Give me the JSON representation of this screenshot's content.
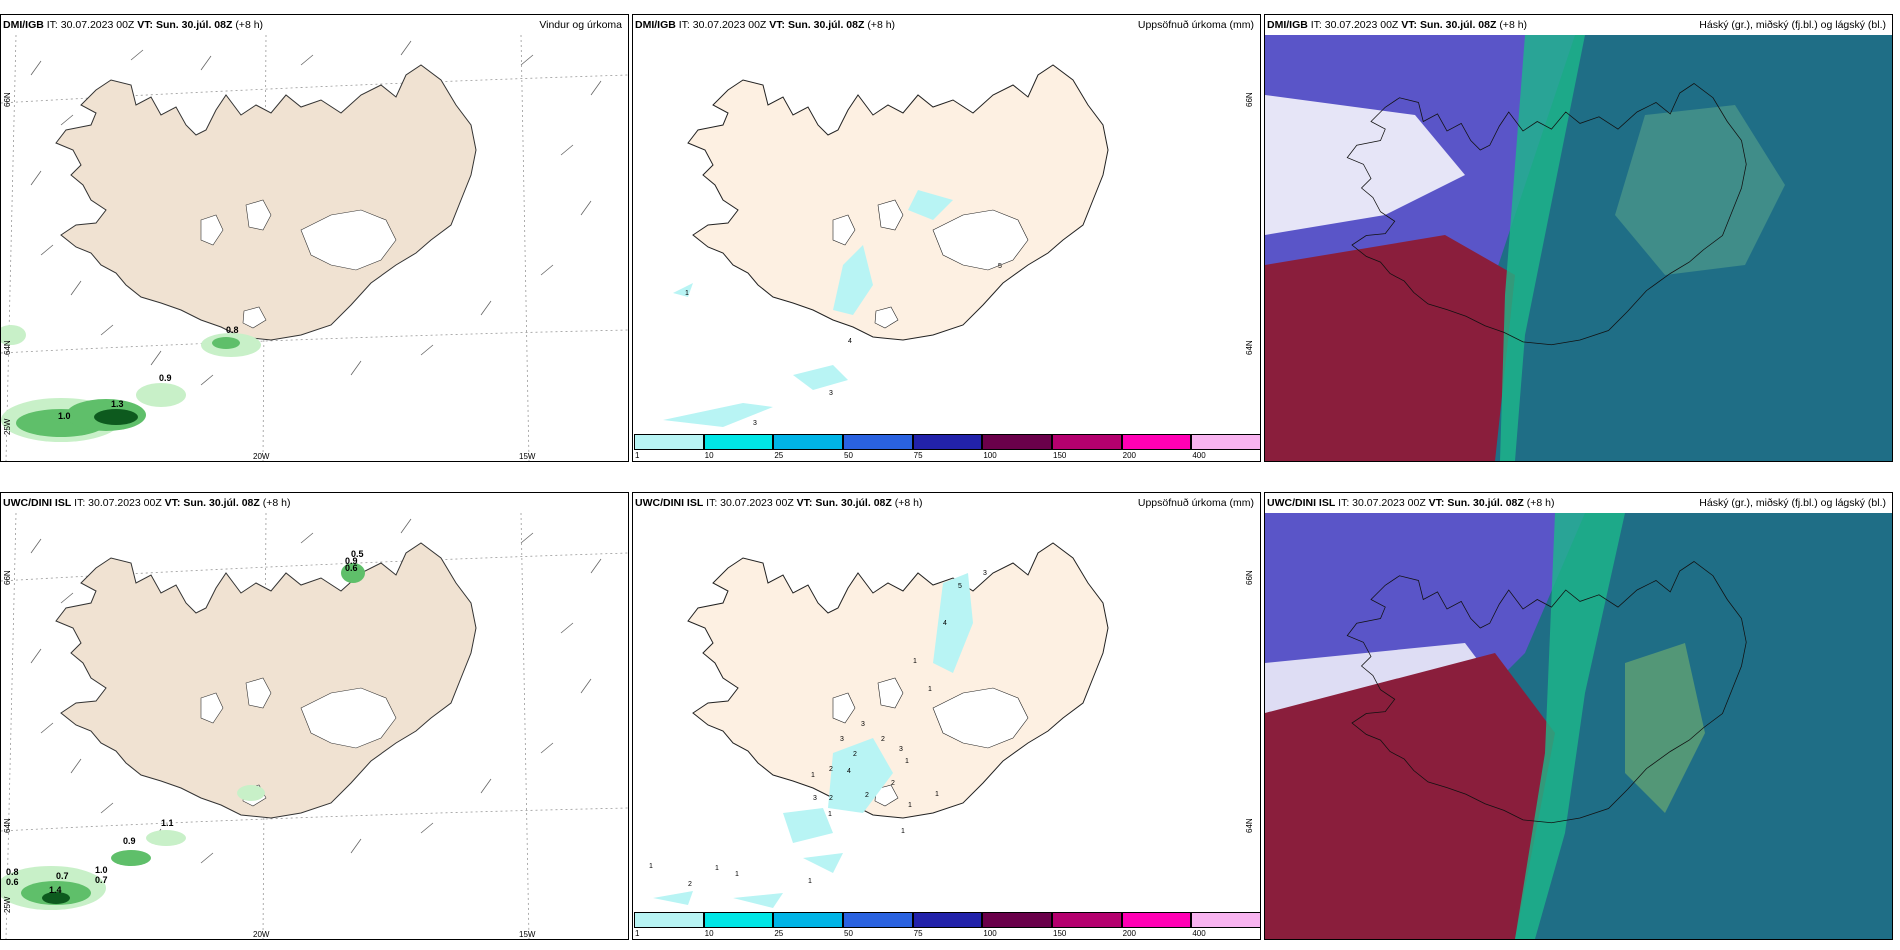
{
  "panels": [
    {
      "id": "p1",
      "model": "DMI/IGB",
      "it": "IT: 30.07.2023 00Z",
      "vt_label": "VT:",
      "vt": "Sun. 30.júl. 08Z",
      "lead": "(+8 h)",
      "product": "Vindur og úrkoma"
    },
    {
      "id": "p2",
      "model": "DMI/IGB",
      "it": "IT: 30.07.2023 00Z",
      "vt_label": "VT:",
      "vt": "Sun. 30.júl. 08Z",
      "lead": "(+8 h)",
      "product": "Uppsöfnuð úrkoma (mm)"
    },
    {
      "id": "p3",
      "model": "DMI/IGB",
      "it": "IT: 30.07.2023 00Z",
      "vt_label": "VT:",
      "vt": "Sun. 30.júl. 08Z",
      "lead": "(+8 h)",
      "product": "Háský (gr.), miðský (fj.bl.) og lágský (bl.)"
    },
    {
      "id": "p4",
      "model": "UWC/DINI ISL",
      "it": "IT: 30.07.2023 00Z",
      "vt_label": "VT:",
      "vt": "Sun. 30.júl. 08Z",
      "lead": "(+8 h)",
      "product": ""
    },
    {
      "id": "p5",
      "model": "UWC/DINI ISL",
      "it": "IT: 30.07.2023 00Z",
      "vt_label": "VT:",
      "vt": "Sun. 30.júl. 08Z",
      "lead": "(+8 h)",
      "product": "Uppsöfnuð úrkoma (mm)"
    },
    {
      "id": "p6",
      "model": "UWC/DINI ISL",
      "it": "IT: 30.07.2023 00Z",
      "vt_label": "VT:",
      "vt": "Sun. 30.júl. 08Z",
      "lead": "(+8 h)",
      "product": "Háský (gr.), miðský (fj.bl.) og lágský (bl.)"
    }
  ],
  "axes": {
    "lat66": "66N",
    "lat64": "64N",
    "lon25": "25W",
    "lon20": "20W",
    "lon15": "15W"
  },
  "legend": {
    "ticks": [
      "1",
      "10",
      "25",
      "50",
      "75",
      "100",
      "150",
      "200",
      "400"
    ],
    "colors": [
      "#b8f4f4",
      "#00e6e6",
      "#00b4e6",
      "#2a62e0",
      "#2222aa",
      "#6a004a",
      "#b4006e",
      "#ff00b4",
      "#f8b4f0"
    ]
  },
  "labels": {
    "p1": [
      "0.8",
      "0.9",
      "1.0",
      "1.3"
    ],
    "p2": [
      "1",
      "4",
      "3",
      "3",
      "5"
    ],
    "p4": [
      "0.5",
      "0.9",
      "0.6",
      "1.1",
      "0.9",
      "0.8",
      "0.6",
      "0.7",
      "1.0",
      "0.7",
      "1.4"
    ],
    "p5": [
      "3",
      "5",
      "4",
      "1",
      "1",
      "3",
      "3",
      "2",
      "2",
      "3",
      "1",
      "2",
      "4",
      "1",
      "2",
      "3",
      "2",
      "2",
      "1",
      "1",
      "1",
      "1",
      "2",
      "1",
      "1",
      "1",
      "1"
    ]
  },
  "colors": {
    "land": "#f0e2d2",
    "glacier": "#ffffff",
    "precip_light": "#c8f0c8",
    "precip_mid": "#5fbf6a",
    "precip_dark": "#0d5a1e",
    "accum": "#b8f4f4",
    "high": "#1aa07e",
    "mid": "#6a5acd",
    "low": "#8a1e3c",
    "ocean_low": "#6f6fd6"
  }
}
